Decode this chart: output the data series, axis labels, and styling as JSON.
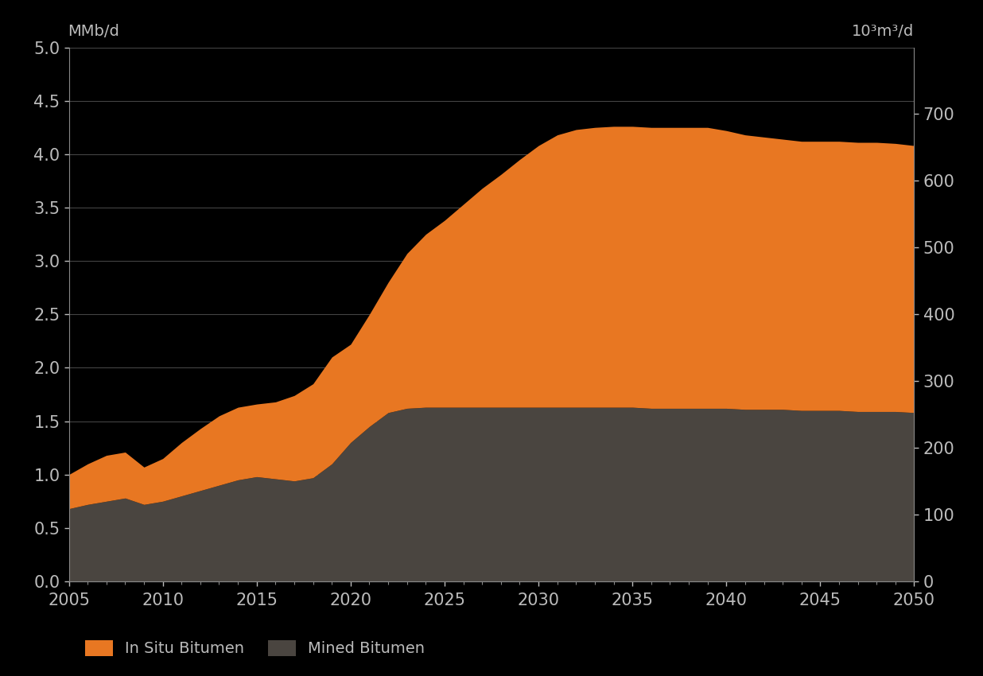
{
  "years": [
    2005,
    2006,
    2007,
    2008,
    2009,
    2010,
    2011,
    2012,
    2013,
    2014,
    2015,
    2016,
    2017,
    2018,
    2019,
    2020,
    2021,
    2022,
    2023,
    2024,
    2025,
    2026,
    2027,
    2028,
    2029,
    2030,
    2031,
    2032,
    2033,
    2034,
    2035,
    2036,
    2037,
    2038,
    2039,
    2040,
    2041,
    2042,
    2043,
    2044,
    2045,
    2046,
    2047,
    2048,
    2049,
    2050
  ],
  "mined_bitumen": [
    0.68,
    0.72,
    0.75,
    0.78,
    0.72,
    0.75,
    0.8,
    0.85,
    0.9,
    0.95,
    0.98,
    0.96,
    0.94,
    0.97,
    1.1,
    1.3,
    1.45,
    1.58,
    1.62,
    1.63,
    1.63,
    1.63,
    1.63,
    1.63,
    1.63,
    1.63,
    1.63,
    1.63,
    1.63,
    1.63,
    1.63,
    1.62,
    1.62,
    1.62,
    1.62,
    1.62,
    1.61,
    1.61,
    1.61,
    1.6,
    1.6,
    1.6,
    1.59,
    1.59,
    1.59,
    1.58
  ],
  "in_situ_bitumen": [
    0.32,
    0.38,
    0.43,
    0.43,
    0.35,
    0.4,
    0.5,
    0.58,
    0.65,
    0.68,
    0.68,
    0.72,
    0.8,
    0.88,
    1.0,
    0.92,
    1.05,
    1.22,
    1.45,
    1.62,
    1.75,
    1.9,
    2.05,
    2.18,
    2.32,
    2.45,
    2.55,
    2.6,
    2.62,
    2.63,
    2.63,
    2.63,
    2.63,
    2.63,
    2.63,
    2.6,
    2.57,
    2.55,
    2.53,
    2.52,
    2.52,
    2.52,
    2.52,
    2.52,
    2.51,
    2.5
  ],
  "bg_color": "#000000",
  "plot_area_color": "#000000",
  "mined_color": "#4a4540",
  "insitu_color": "#e87722",
  "left_ylabel": "MMb/d",
  "right_ylabel": "10³m³/d",
  "ylim_left": [
    0.0,
    5.0
  ],
  "ylim_right": [
    0,
    800
  ],
  "yticks_left": [
    0.0,
    0.5,
    1.0,
    1.5,
    2.0,
    2.5,
    3.0,
    3.5,
    4.0,
    4.5,
    5.0
  ],
  "yticks_right": [
    0,
    100,
    200,
    300,
    400,
    500,
    600,
    700
  ],
  "xlim": [
    2005,
    2050
  ],
  "xticks": [
    2005,
    2010,
    2015,
    2020,
    2025,
    2030,
    2035,
    2040,
    2045,
    2050
  ],
  "legend_insitu": "In Situ Bitumen",
  "legend_mined": "Mined Bitumen",
  "grid_color": "#444444",
  "text_color": "#bbbbbb",
  "spine_color": "#888888"
}
